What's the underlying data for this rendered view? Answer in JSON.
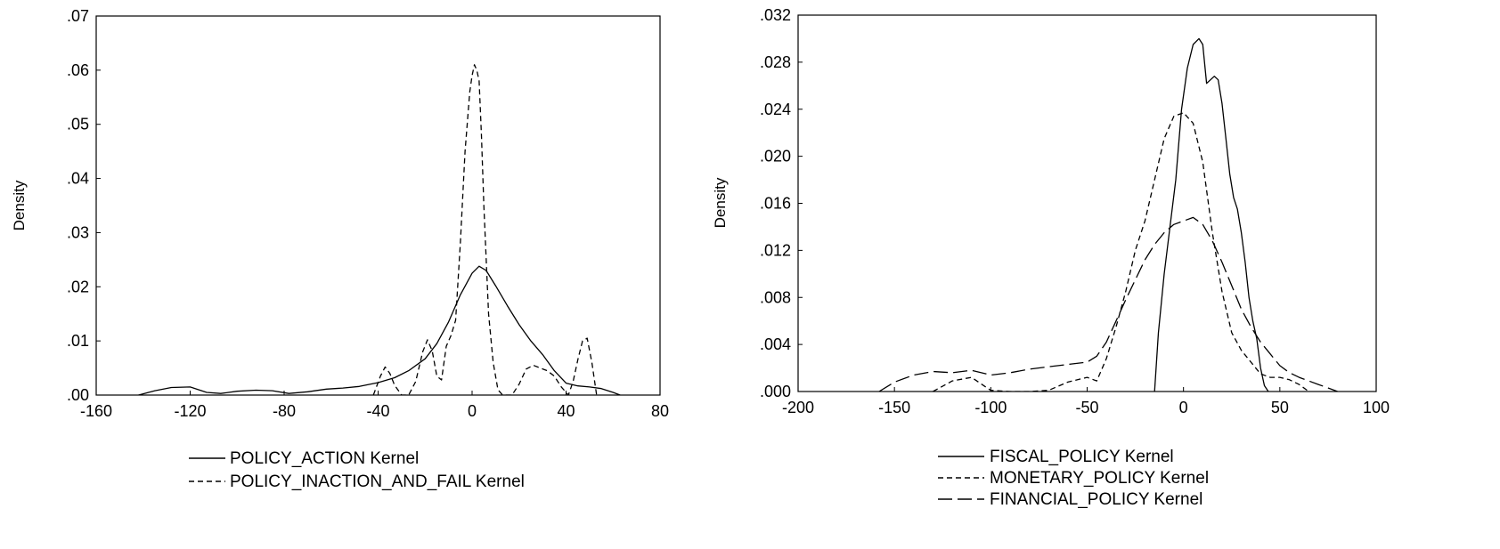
{
  "chart_data": [
    {
      "type": "line",
      "title": "",
      "xlabel": "",
      "ylabel": "Density",
      "xlim": [
        -160,
        80
      ],
      "ylim": [
        0,
        0.07
      ],
      "x_ticks": [
        -160,
        -120,
        -80,
        -40,
        0,
        40,
        80
      ],
      "x_tick_labels": [
        "-160",
        "-120",
        "-80",
        "-40",
        "0",
        "40",
        "80"
      ],
      "y_ticks": [
        0,
        0.01,
        0.02,
        0.03,
        0.04,
        0.05,
        0.06,
        0.07
      ],
      "y_tick_labels": [
        ".00",
        ".01",
        ".02",
        ".03",
        ".04",
        ".05",
        ".06",
        ".07"
      ],
      "grid": false,
      "legend_position": "bottom",
      "series": [
        {
          "name": "POLICY_ACTION Kernel",
          "line_style": "solid",
          "x": [
            -142,
            -135,
            -128,
            -120,
            -113,
            -107,
            -100,
            -92,
            -85,
            -78,
            -70,
            -62,
            -55,
            -48,
            -40,
            -33,
            -27,
            -20,
            -15,
            -10,
            -5,
            0,
            3,
            6,
            10,
            15,
            20,
            25,
            30,
            35,
            40,
            45,
            50,
            55,
            60,
            63
          ],
          "y": [
            0,
            0.0008,
            0.0014,
            0.0015,
            0.0005,
            0.0003,
            0.0007,
            0.0009,
            0.0008,
            0.0003,
            0.0006,
            0.0011,
            0.0013,
            0.0016,
            0.0023,
            0.0032,
            0.0045,
            0.0067,
            0.0095,
            0.0135,
            0.0185,
            0.0225,
            0.0238,
            0.023,
            0.0202,
            0.0165,
            0.013,
            0.01,
            0.0075,
            0.0045,
            0.0022,
            0.0017,
            0.0015,
            0.0012,
            0.0005,
            0
          ]
        },
        {
          "name": "POLICY_INACTION_AND_FAIL Kernel",
          "line_style": "dashed",
          "x": [
            -42,
            -39,
            -37,
            -35,
            -33,
            -30,
            -27,
            -24,
            -21,
            -19,
            -17,
            -15,
            -13,
            -11,
            -9,
            -7,
            -5,
            -3,
            -1,
            0,
            1,
            2,
            3,
            4,
            5,
            7,
            9,
            11,
            13,
            15,
            17,
            20,
            23,
            26,
            29,
            32,
            35,
            38,
            41,
            43,
            45,
            47,
            49,
            51,
            53
          ],
          "y": [
            0,
            0.0035,
            0.0052,
            0.004,
            0.0018,
            0,
            0,
            0.0025,
            0.008,
            0.0102,
            0.0082,
            0.0035,
            0.0028,
            0.009,
            0.011,
            0.0138,
            0.028,
            0.045,
            0.056,
            0.059,
            0.061,
            0.06,
            0.058,
            0.048,
            0.035,
            0.015,
            0.006,
            0.001,
            0,
            0,
            0,
            0.002,
            0.0048,
            0.0055,
            0.005,
            0.0045,
            0.0035,
            0.0015,
            0,
            0.0025,
            0.0065,
            0.01,
            0.0105,
            0.006,
            0
          ]
        }
      ]
    },
    {
      "type": "line",
      "title": "",
      "xlabel": "",
      "ylabel": "Density",
      "xlim": [
        -200,
        100
      ],
      "ylim": [
        0,
        0.032
      ],
      "x_ticks": [
        -200,
        -150,
        -100,
        -50,
        0,
        50,
        100
      ],
      "x_tick_labels": [
        "-200",
        "-150",
        "-100",
        "-50",
        "0",
        "50",
        "100"
      ],
      "y_ticks": [
        0,
        0.004,
        0.008,
        0.012,
        0.016,
        0.02,
        0.024,
        0.028,
        0.032
      ],
      "y_tick_labels": [
        ".000",
        ".004",
        ".008",
        ".012",
        ".016",
        ".020",
        ".024",
        ".028",
        ".032"
      ],
      "grid": false,
      "legend_position": "bottom",
      "series": [
        {
          "name": "FISCAL_POLICY Kernel",
          "line_style": "solid",
          "x": [
            -15,
            -13,
            -10,
            -7,
            -4,
            -1,
            2,
            5,
            8,
            10,
            12,
            14,
            16,
            18,
            20,
            22,
            24,
            26,
            28,
            30,
            32,
            34,
            36,
            38,
            40,
            42,
            44
          ],
          "y": [
            0,
            0.005,
            0.01,
            0.014,
            0.018,
            0.024,
            0.0275,
            0.0295,
            0.03,
            0.0295,
            0.0262,
            0.0265,
            0.0268,
            0.0265,
            0.0245,
            0.0215,
            0.0185,
            0.0165,
            0.0155,
            0.0135,
            0.011,
            0.008,
            0.006,
            0.0045,
            0.002,
            0.0005,
            0
          ]
        },
        {
          "name": "MONETARY_POLICY Kernel",
          "line_style": "dashed",
          "x": [
            -130,
            -120,
            -110,
            -100,
            -90,
            -80,
            -70,
            -60,
            -50,
            -45,
            -40,
            -35,
            -30,
            -25,
            -20,
            -15,
            -10,
            -5,
            0,
            5,
            10,
            15,
            20,
            25,
            30,
            35,
            40,
            45,
            50,
            55,
            60,
            65
          ],
          "y": [
            0,
            0.0009,
            0.0012,
            0.0001,
            0,
            0,
            0.0001,
            0.0008,
            0.0012,
            0.0009,
            0.0028,
            0.0055,
            0.0085,
            0.012,
            0.0145,
            0.018,
            0.0215,
            0.0234,
            0.0237,
            0.0228,
            0.0195,
            0.0135,
            0.0085,
            0.005,
            0.0035,
            0.0025,
            0.0015,
            0.0012,
            0.0012,
            0.001,
            0.0006,
            0
          ]
        },
        {
          "name": "FINANCIAL_POLICY Kernel",
          "line_style": "long-dashed",
          "x": [
            -158,
            -150,
            -140,
            -130,
            -120,
            -110,
            -100,
            -90,
            -80,
            -70,
            -60,
            -50,
            -45,
            -40,
            -35,
            -30,
            -25,
            -20,
            -15,
            -10,
            -5,
            0,
            5,
            10,
            15,
            20,
            25,
            30,
            35,
            40,
            45,
            50,
            55,
            60,
            65,
            70,
            75,
            80
          ],
          "y": [
            0,
            0.0008,
            0.0014,
            0.0017,
            0.0016,
            0.0018,
            0.0014,
            0.0016,
            0.0019,
            0.0021,
            0.0023,
            0.0025,
            0.003,
            0.0042,
            0.006,
            0.0078,
            0.0095,
            0.0112,
            0.0125,
            0.0135,
            0.0142,
            0.0145,
            0.0148,
            0.0142,
            0.0128,
            0.011,
            0.009,
            0.007,
            0.0055,
            0.0042,
            0.0032,
            0.0022,
            0.0016,
            0.0012,
            0.0009,
            0.0006,
            0.0003,
            0
          ]
        }
      ]
    }
  ]
}
